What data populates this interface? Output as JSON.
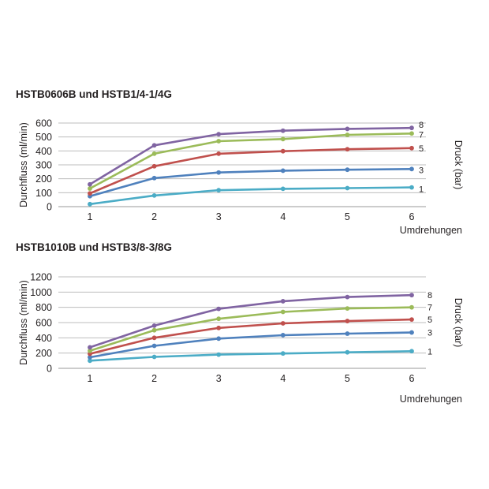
{
  "chart_data": [
    {
      "type": "line",
      "title": "HSTB0606B und HSTB1/4-1/4G",
      "xlabel": "Umdrehungen",
      "ylabel": "Durchfluss (ml/min)",
      "y2label": "Druck (bar)",
      "x": [
        1,
        2,
        3,
        4,
        5,
        6
      ],
      "ylim": [
        0,
        600
      ],
      "yticks": [
        0,
        100,
        200,
        300,
        400,
        500,
        600
      ],
      "grid": true,
      "series": [
        {
          "name": "8",
          "color": "#8064a2",
          "values": [
            160,
            440,
            520,
            545,
            558,
            565
          ]
        },
        {
          "name": "7",
          "color": "#9bbb59",
          "values": [
            130,
            380,
            470,
            485,
            515,
            525
          ]
        },
        {
          "name": "5",
          "color": "#c0504d",
          "values": [
            95,
            290,
            380,
            398,
            412,
            420
          ]
        },
        {
          "name": "3",
          "color": "#4f81bd",
          "values": [
            75,
            205,
            245,
            258,
            265,
            270
          ]
        },
        {
          "name": "1",
          "color": "#4bacc6",
          "values": [
            18,
            80,
            118,
            128,
            133,
            138
          ]
        }
      ]
    },
    {
      "type": "line",
      "title": "HSTB1010B und HSTB3/8-3/8G",
      "xlabel": "Umdrehungen",
      "ylabel": "Durchfluss (ml/min)",
      "y2label": "Druck (bar)",
      "x": [
        1,
        2,
        3,
        4,
        5,
        6
      ],
      "ylim": [
        0,
        1200
      ],
      "yticks": [
        0,
        200,
        400,
        600,
        800,
        1000,
        1200
      ],
      "grid": true,
      "series": [
        {
          "name": "8",
          "color": "#8064a2",
          "values": [
            275,
            560,
            780,
            880,
            935,
            960
          ]
        },
        {
          "name": "7",
          "color": "#9bbb59",
          "values": [
            230,
            500,
            650,
            740,
            785,
            800
          ]
        },
        {
          "name": "5",
          "color": "#c0504d",
          "values": [
            190,
            400,
            530,
            590,
            620,
            640
          ]
        },
        {
          "name": "3",
          "color": "#4f81bd",
          "values": [
            145,
            295,
            390,
            435,
            455,
            470
          ]
        },
        {
          "name": "1",
          "color": "#4bacc6",
          "values": [
            100,
            150,
            180,
            195,
            210,
            225
          ]
        }
      ]
    }
  ]
}
